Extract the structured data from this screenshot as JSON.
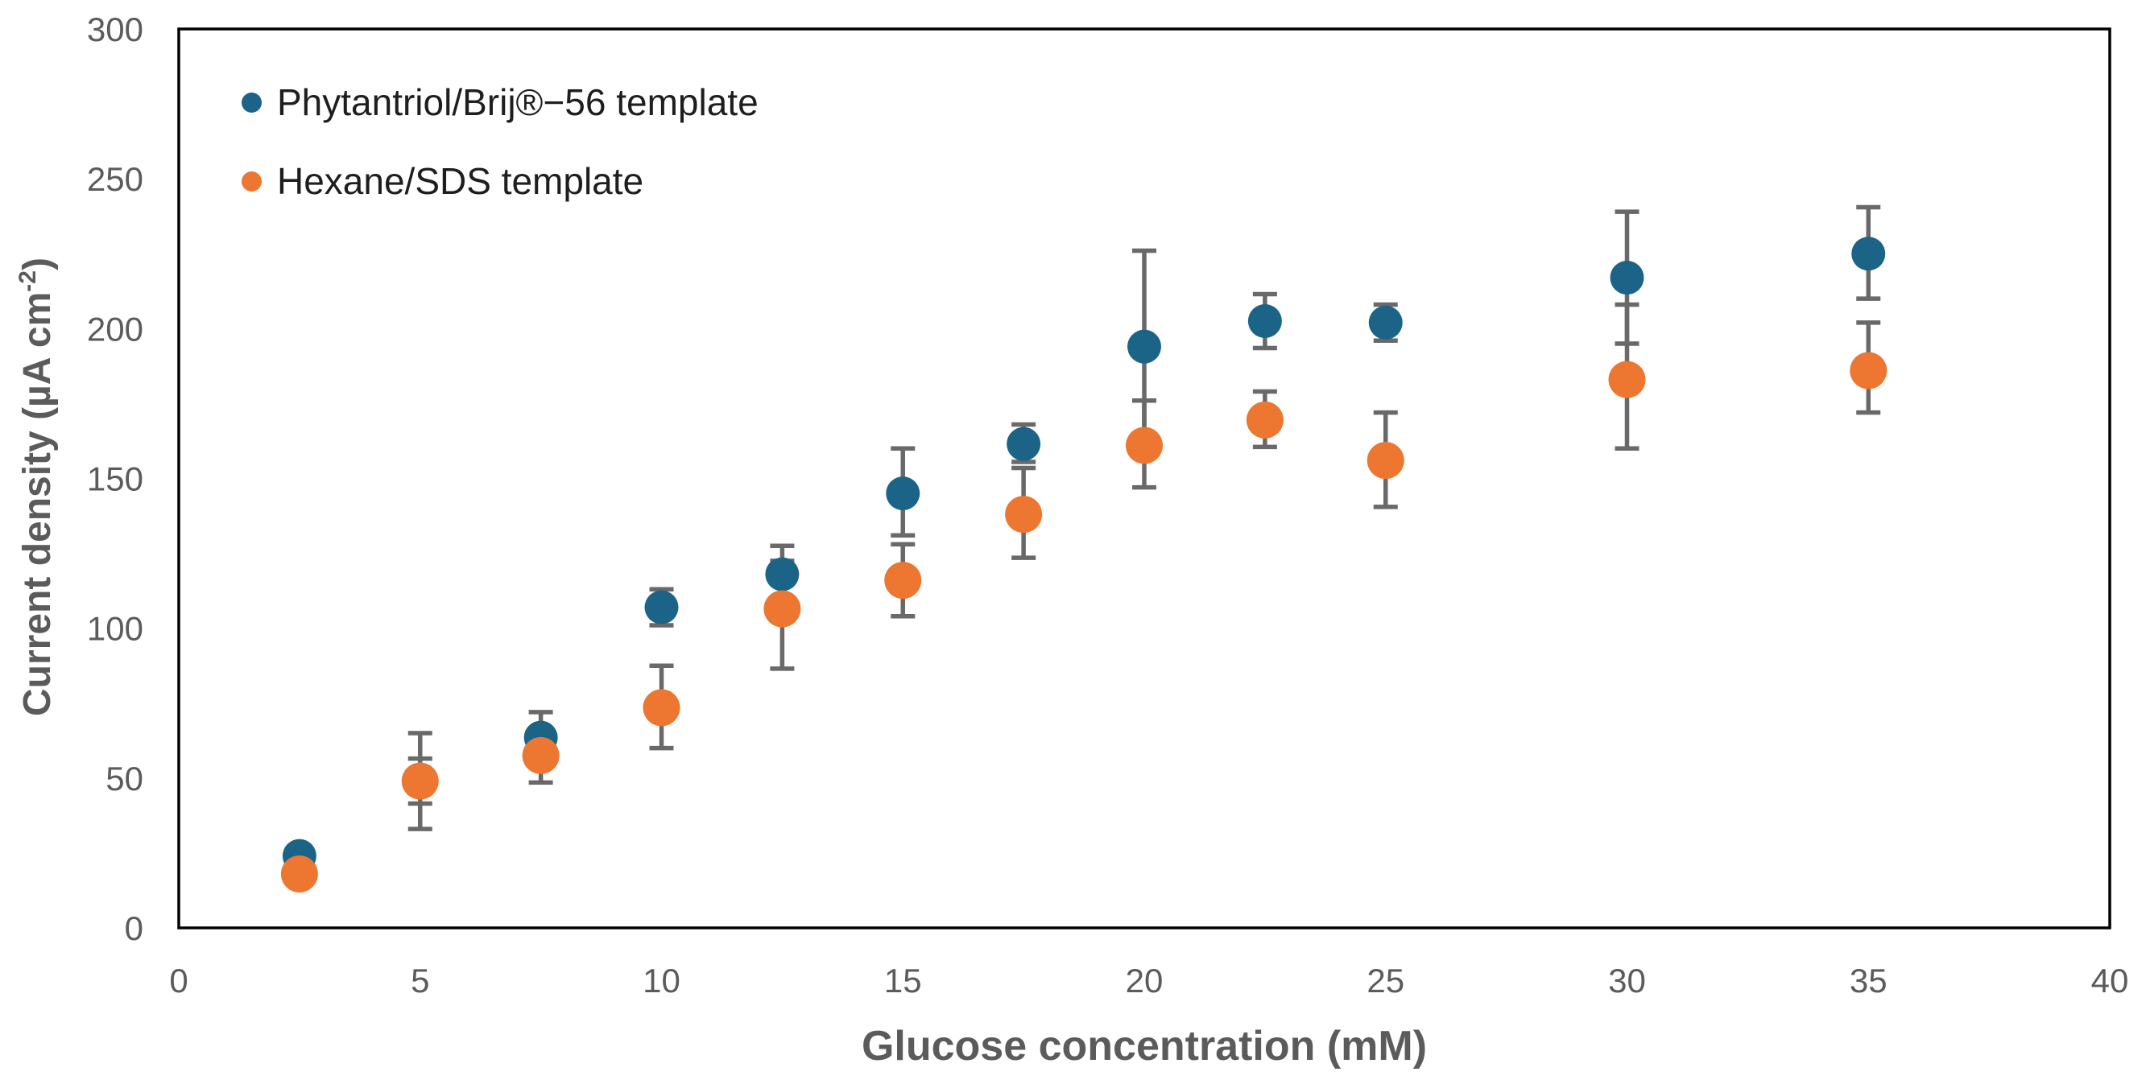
{
  "figure": {
    "background": "#ffffff"
  },
  "legend": {
    "items": [
      {
        "label": "Phytantriol/Brij®−56 template",
        "color": "#1B6488"
      },
      {
        "label": "Hexane/SDS template",
        "color": "#ED7630"
      }
    ]
  },
  "chart_data": {
    "type": "scatter",
    "title": "",
    "xlabel": "Glucose concentration (mM)",
    "ylabel": "Current density (µA cm-2)",
    "ylabel_parts": {
      "pre": "Current density (µA cm",
      "sup": "-2",
      "post": ")"
    },
    "xlim": [
      0,
      40
    ],
    "ylim": [
      0,
      300
    ],
    "xticks": [
      0,
      5,
      10,
      15,
      20,
      25,
      30,
      35,
      40
    ],
    "yticks": [
      0,
      50,
      100,
      150,
      200,
      250,
      300
    ],
    "grid": false,
    "legend_position": "top-left-inside",
    "x": [
      2.5,
      5,
      7.5,
      10,
      12.5,
      15,
      17.5,
      20,
      22.5,
      25,
      30,
      35
    ],
    "series": [
      {
        "name": "Phytantriol/Brij®−56 template",
        "color": "#1B6488",
        "marker_radius": 21,
        "y": [
          24,
          49,
          63.5,
          107,
          118,
          145,
          161.5,
          194,
          202.5,
          202,
          217,
          225
        ],
        "err_up": [
          0,
          7.5,
          8.5,
          6,
          9.5,
          15,
          6.5,
          32,
          9,
          6,
          22,
          15.5
        ],
        "err_down": [
          0,
          7.5,
          8.5,
          6,
          9.5,
          14,
          6,
          32,
          9,
          6,
          22,
          15
        ]
      },
      {
        "name": "Hexane/SDS template",
        "color": "#ED7630",
        "marker_radius": 23,
        "y": [
          18,
          49,
          57.5,
          73.5,
          106.5,
          116,
          138,
          161,
          169.5,
          156,
          183,
          186
        ],
        "err_up": [
          0,
          16,
          9,
          14,
          16,
          12,
          15.5,
          15,
          9.5,
          16,
          25,
          16
        ],
        "err_down": [
          0,
          16,
          9,
          13.5,
          20,
          12,
          14.5,
          14,
          9,
          15.5,
          23,
          14
        ]
      }
    ],
    "error_bar_color": "#696969",
    "axis_text_color": "#5B5B5B",
    "legend_text_color": "#1E1E1E",
    "frame_color": "#000000"
  }
}
